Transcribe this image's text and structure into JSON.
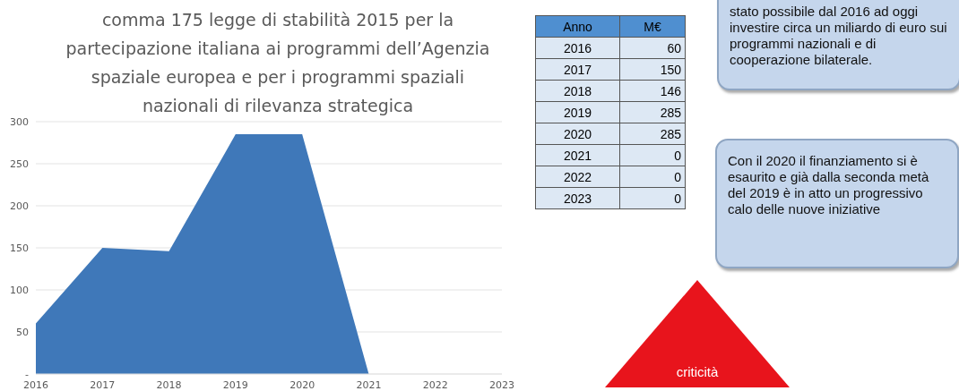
{
  "chart_data": {
    "type": "area",
    "title": "comma 175 legge di stabilità 2015 per la partecipazione italiana ai programmi dell’Agenzia spaziale europea e per i programmi spaziali nazionali di rilevanza strategica",
    "categories": [
      "2016",
      "2017",
      "2018",
      "2019",
      "2020",
      "2021",
      "2022",
      "2023"
    ],
    "values": [
      60,
      150,
      146,
      285,
      285,
      0,
      0,
      0
    ],
    "color": "#3f78b9",
    "ylim": [
      0,
      300
    ],
    "yticks": [
      {
        "value": 0,
        "label": "-"
      },
      50,
      100,
      150,
      200,
      250,
      300
    ],
    "grid": "y",
    "annotations": [
      "Anno",
      "M€",
      "stato possibile dal 2016 ad oggi investire circa un miliardo di euro sui programmi nazionali e di cooperazione bilaterale.",
      "Con il 2020 il finanziamento si è esaurito e già dalla seconda metà del 2019 è in atto un progressivo calo delle nuove iniziative",
      "criticità",
      "60",
      "150",
      "146",
      "285",
      "285",
      "0",
      "0",
      "0"
    ]
  }
}
